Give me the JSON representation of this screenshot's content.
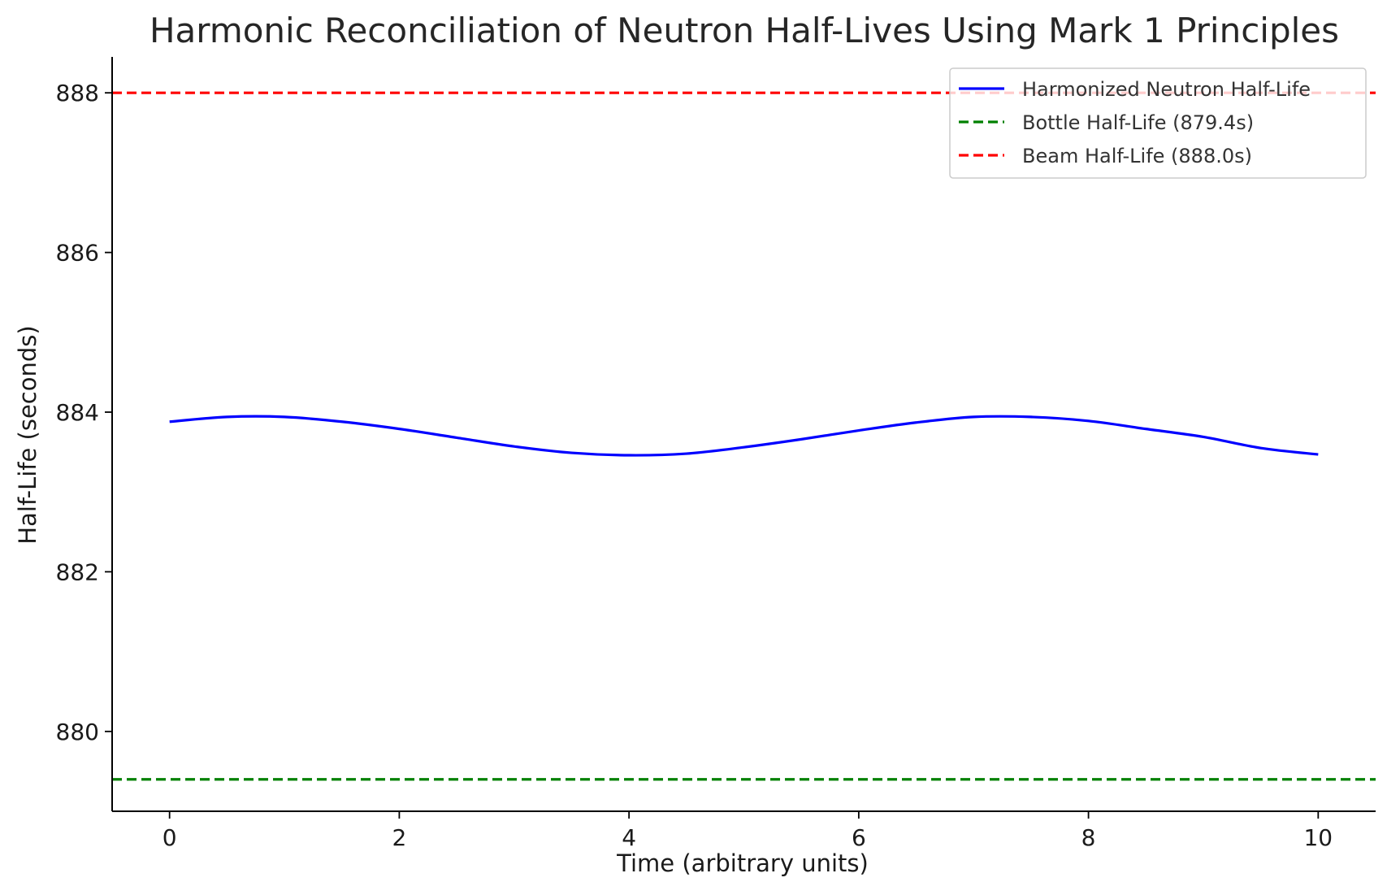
{
  "chart_data": {
    "type": "line",
    "title": "Harmonic Reconciliation of Neutron Half-Lives Using Mark 1 Principles",
    "xlabel": "Time (arbitrary units)",
    "ylabel": "Half-Life (seconds)",
    "xlim": [
      -0.5,
      10.5
    ],
    "ylim": [
      879.0,
      888.45
    ],
    "xticks": [
      0,
      2,
      4,
      6,
      8,
      10
    ],
    "yticks": [
      880,
      882,
      884,
      886,
      888
    ],
    "xtick_labels": [
      "0",
      "2",
      "4",
      "6",
      "8",
      "10"
    ],
    "ytick_labels": [
      "880",
      "882",
      "884",
      "886",
      "888"
    ],
    "grid": false,
    "legend_position": "top-right",
    "series": [
      {
        "name": "Harmonized Neutron Half-Life",
        "style": "solid",
        "color": "#0000ff",
        "x": [
          0,
          0.5,
          1,
          1.5,
          2,
          2.5,
          3,
          3.5,
          4,
          4.5,
          5,
          5.5,
          6,
          6.5,
          7,
          7.5,
          8,
          8.5,
          9,
          9.5,
          10
        ],
        "y": [
          883.88,
          883.94,
          883.94,
          883.88,
          883.79,
          883.68,
          883.57,
          883.49,
          883.46,
          883.48,
          883.56,
          883.66,
          883.77,
          883.87,
          883.94,
          883.94,
          883.89,
          883.79,
          883.69,
          883.55,
          883.47
        ]
      },
      {
        "name": "Bottle Half-Life (879.4s)",
        "style": "dashed",
        "color": "#008000",
        "x": [
          -0.5,
          10.5
        ],
        "y": [
          879.4,
          879.4
        ]
      },
      {
        "name": "Beam Half-Life (888.0s)",
        "style": "dashed",
        "color": "#ff0000",
        "x": [
          -0.5,
          10.5
        ],
        "y": [
          888.0,
          888.0
        ]
      }
    ]
  }
}
